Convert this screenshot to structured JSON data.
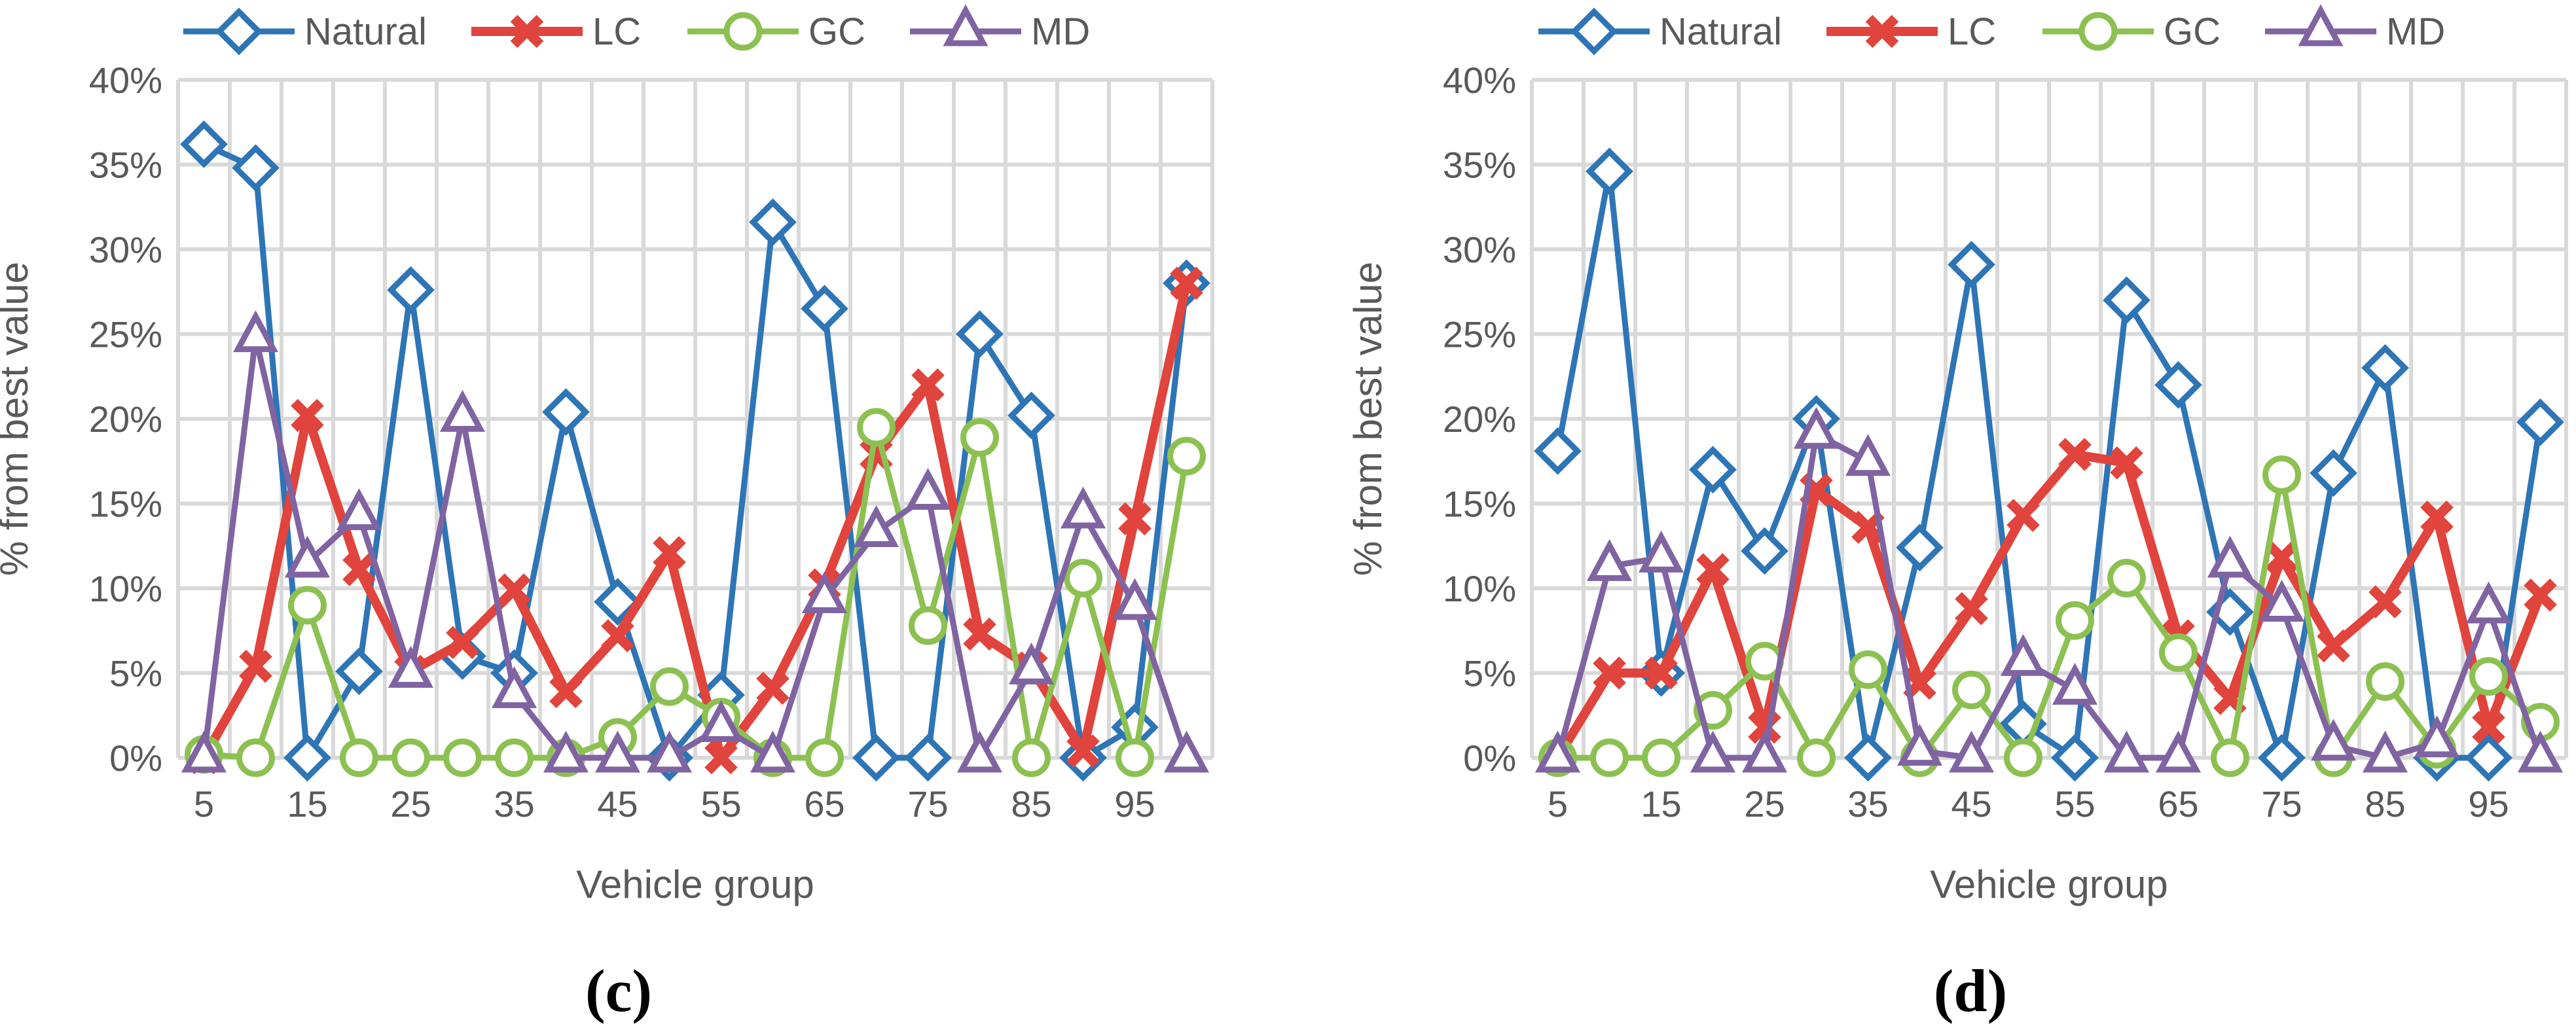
{
  "chart_data": [
    {
      "type": "line",
      "panel_label": "(c)",
      "xlabel": "Vehicle group",
      "ylabel": "% from best value",
      "ylim": [
        0,
        40
      ],
      "yticks": [
        "0%",
        "5%",
        "10%",
        "15%",
        "20%",
        "25%",
        "30%",
        "35%",
        "40%"
      ],
      "x": [
        5,
        10,
        15,
        20,
        25,
        30,
        35,
        40,
        45,
        50,
        55,
        60,
        65,
        70,
        75,
        80,
        85,
        90,
        95,
        100
      ],
      "xtick_labels": [
        "5",
        "15",
        "25",
        "35",
        "45",
        "55",
        "65",
        "75",
        "85",
        "95"
      ],
      "legend_position": "top",
      "grid": true,
      "series": [
        {
          "name": "Natural",
          "color": "#2e75b6",
          "marker": "diamond",
          "values": [
            36.2,
            34.8,
            0,
            5.1,
            27.6,
            6.0,
            5.0,
            20.4,
            9.2,
            0,
            3.7,
            31.6,
            26.5,
            0,
            0,
            25.0,
            20.2,
            0,
            1.8,
            28.0
          ]
        },
        {
          "name": "LC",
          "color": "#e0443c",
          "marker": "x",
          "values": [
            0,
            5.4,
            20.2,
            11.1,
            5.1,
            6.8,
            9.9,
            3.9,
            7.2,
            12.1,
            0,
            4.1,
            10.2,
            17.9,
            22.0,
            7.3,
            5.3,
            0.4,
            14.1,
            28.0
          ]
        },
        {
          "name": "GC",
          "color": "#8cc152",
          "marker": "circle",
          "values": [
            0.2,
            0,
            9.0,
            0,
            0,
            0,
            0,
            0,
            1.2,
            4.2,
            2.4,
            0,
            0,
            19.5,
            7.8,
            18.9,
            0,
            10.6,
            0,
            17.8
          ]
        },
        {
          "name": "MD",
          "color": "#8064a2",
          "marker": "triangle",
          "values": [
            0,
            24.8,
            11.5,
            14.3,
            5.0,
            20.1,
            3.8,
            0,
            0,
            0,
            1.8,
            0,
            9.4,
            13.3,
            15.5,
            0,
            5.2,
            14.4,
            9.0,
            0
          ]
        }
      ]
    },
    {
      "type": "line",
      "panel_label": "(d)",
      "xlabel": "Vehicle group",
      "ylabel": "% from best value",
      "ylim": [
        0,
        40
      ],
      "yticks": [
        "0%",
        "5%",
        "10%",
        "15%",
        "20%",
        "25%",
        "30%",
        "35%",
        "40%"
      ],
      "x": [
        5,
        10,
        15,
        20,
        25,
        30,
        35,
        40,
        45,
        50,
        55,
        60,
        65,
        70,
        75,
        80,
        85,
        90,
        95,
        100
      ],
      "xtick_labels": [
        "5",
        "15",
        "25",
        "35",
        "45",
        "55",
        "65",
        "75",
        "85",
        "95"
      ],
      "legend_position": "top",
      "grid": true,
      "series": [
        {
          "name": "Natural",
          "color": "#2e75b6",
          "marker": "diamond",
          "values": [
            18.1,
            34.6,
            5.0,
            17.0,
            12.2,
            20.0,
            0,
            12.4,
            29.1,
            2.0,
            0,
            27.0,
            22.0,
            8.6,
            0,
            16.8,
            23.0,
            0,
            0,
            19.8
          ]
        },
        {
          "name": "LC",
          "color": "#e0443c",
          "marker": "x",
          "values": [
            0,
            5.0,
            5.0,
            11.1,
            1.8,
            15.8,
            13.6,
            4.4,
            8.8,
            14.3,
            17.9,
            17.4,
            7.2,
            3.5,
            11.8,
            6.6,
            9.2,
            14.2,
            1.8,
            9.6
          ]
        },
        {
          "name": "GC",
          "color": "#8cc152",
          "marker": "circle",
          "values": [
            0,
            0,
            0,
            2.8,
            5.7,
            0,
            5.2,
            0,
            4.0,
            0,
            8.1,
            10.6,
            6.2,
            0,
            16.7,
            0,
            4.5,
            0.5,
            4.8,
            2.1
          ]
        },
        {
          "name": "MD",
          "color": "#8064a2",
          "marker": "triangle",
          "values": [
            0,
            11.3,
            11.8,
            0,
            0,
            19.1,
            17.5,
            0.4,
            0,
            5.7,
            4.0,
            0,
            0,
            11.5,
            8.9,
            0.7,
            0,
            0.9,
            8.8,
            0
          ]
        }
      ]
    }
  ]
}
